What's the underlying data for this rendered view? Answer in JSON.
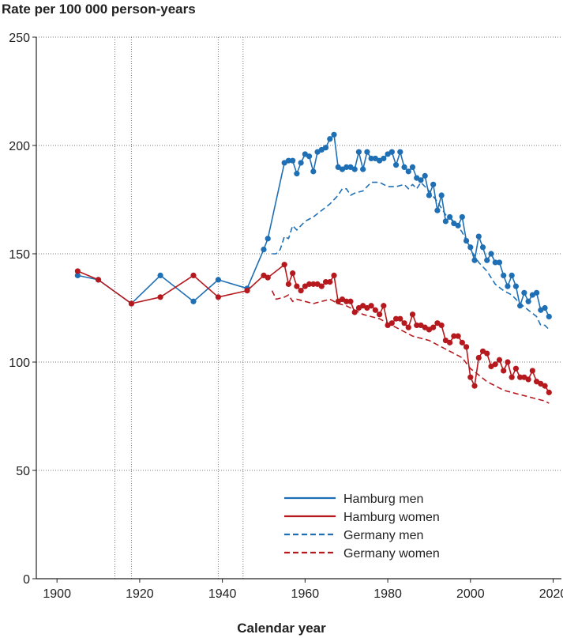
{
  "chart_data": {
    "type": "line",
    "ylabel": "Rate per 100 000 person-years",
    "xlabel": "Calendar year",
    "xlim": [
      1895,
      2022
    ],
    "ylim": [
      0,
      250
    ],
    "xticks": [
      1900,
      1920,
      1940,
      1960,
      1980,
      2000,
      2020
    ],
    "yticks": [
      0,
      50,
      100,
      150,
      200,
      250
    ],
    "grid": "horizontal dotted",
    "event_lines": [
      1914,
      1918,
      1939,
      1945
    ],
    "legend_position": "bottom-right",
    "series": [
      {
        "name": "Hamburg men",
        "style": "solid-markers",
        "color": "#1f6fb5",
        "points": [
          [
            1905,
            140
          ],
          [
            1910,
            138
          ],
          [
            1918,
            127
          ],
          [
            1925,
            140
          ],
          [
            1933,
            128
          ],
          [
            1939,
            138
          ],
          [
            1946,
            134
          ],
          [
            1950,
            152
          ],
          [
            1951,
            157
          ],
          [
            1955,
            192
          ],
          [
            1956,
            193
          ],
          [
            1957,
            193
          ],
          [
            1958,
            187
          ],
          [
            1959,
            192
          ],
          [
            1960,
            196
          ],
          [
            1961,
            195
          ],
          [
            1962,
            188
          ],
          [
            1963,
            197
          ],
          [
            1964,
            198
          ],
          [
            1965,
            199
          ],
          [
            1966,
            203
          ],
          [
            1967,
            205
          ],
          [
            1968,
            190
          ],
          [
            1969,
            189
          ],
          [
            1970,
            190
          ],
          [
            1971,
            190
          ],
          [
            1972,
            189
          ],
          [
            1973,
            197
          ],
          [
            1974,
            189
          ],
          [
            1975,
            197
          ],
          [
            1976,
            194
          ],
          [
            1977,
            194
          ],
          [
            1978,
            193
          ],
          [
            1979,
            194
          ],
          [
            1980,
            196
          ],
          [
            1981,
            197
          ],
          [
            1982,
            191
          ],
          [
            1983,
            197
          ],
          [
            1984,
            190
          ],
          [
            1985,
            188
          ],
          [
            1986,
            190
          ],
          [
            1987,
            185
          ],
          [
            1988,
            184
          ],
          [
            1989,
            186
          ],
          [
            1990,
            177
          ],
          [
            1991,
            182
          ],
          [
            1992,
            170
          ],
          [
            1993,
            177
          ],
          [
            1994,
            165
          ],
          [
            1995,
            167
          ],
          [
            1996,
            164
          ],
          [
            1997,
            163
          ],
          [
            1998,
            167
          ],
          [
            1999,
            156
          ],
          [
            2000,
            153
          ],
          [
            2001,
            147
          ],
          [
            2002,
            158
          ],
          [
            2003,
            153
          ],
          [
            2004,
            147
          ],
          [
            2005,
            150
          ],
          [
            2006,
            146
          ],
          [
            2007,
            146
          ],
          [
            2008,
            140
          ],
          [
            2009,
            135
          ],
          [
            2010,
            140
          ],
          [
            2011,
            135
          ],
          [
            2012,
            126
          ],
          [
            2013,
            132
          ],
          [
            2014,
            128
          ],
          [
            2015,
            131
          ],
          [
            2016,
            132
          ],
          [
            2017,
            124
          ],
          [
            2018,
            125
          ],
          [
            2019,
            121
          ]
        ]
      },
      {
        "name": "Hamburg women",
        "style": "solid-markers",
        "color": "#b5191e",
        "points": [
          [
            1905,
            142
          ],
          [
            1910,
            138
          ],
          [
            1918,
            127
          ],
          [
            1925,
            130
          ],
          [
            1933,
            140
          ],
          [
            1939,
            130
          ],
          [
            1946,
            133
          ],
          [
            1950,
            140
          ],
          [
            1951,
            139
          ],
          [
            1955,
            145
          ],
          [
            1956,
            136
          ],
          [
            1957,
            141
          ],
          [
            1958,
            135
          ],
          [
            1959,
            133
          ],
          [
            1960,
            135
          ],
          [
            1961,
            136
          ],
          [
            1962,
            136
          ],
          [
            1963,
            136
          ],
          [
            1964,
            135
          ],
          [
            1965,
            137
          ],
          [
            1966,
            137
          ],
          [
            1967,
            140
          ],
          [
            1968,
            128
          ],
          [
            1969,
            129
          ],
          [
            1970,
            128
          ],
          [
            1971,
            128
          ],
          [
            1972,
            123
          ],
          [
            1973,
            125
          ],
          [
            1974,
            126
          ],
          [
            1975,
            125
          ],
          [
            1976,
            126
          ],
          [
            1977,
            124
          ],
          [
            1978,
            122
          ],
          [
            1979,
            126
          ],
          [
            1980,
            117
          ],
          [
            1981,
            118
          ],
          [
            1982,
            120
          ],
          [
            1983,
            120
          ],
          [
            1984,
            118
          ],
          [
            1985,
            116
          ],
          [
            1986,
            122
          ],
          [
            1987,
            117
          ],
          [
            1988,
            117
          ],
          [
            1989,
            116
          ],
          [
            1990,
            115
          ],
          [
            1991,
            116
          ],
          [
            1992,
            118
          ],
          [
            1993,
            117
          ],
          [
            1994,
            110
          ],
          [
            1995,
            109
          ],
          [
            1996,
            112
          ],
          [
            1997,
            112
          ],
          [
            1998,
            109
          ],
          [
            1999,
            107
          ],
          [
            2000,
            93
          ],
          [
            2001,
            89
          ],
          [
            2002,
            102
          ],
          [
            2003,
            105
          ],
          [
            2004,
            104
          ],
          [
            2005,
            98
          ],
          [
            2006,
            99
          ],
          [
            2007,
            101
          ],
          [
            2008,
            96
          ],
          [
            2009,
            100
          ],
          [
            2010,
            93
          ],
          [
            2011,
            97
          ],
          [
            2012,
            93
          ],
          [
            2013,
            93
          ],
          [
            2014,
            92
          ],
          [
            2015,
            96
          ],
          [
            2016,
            91
          ],
          [
            2017,
            90
          ],
          [
            2018,
            89
          ],
          [
            2019,
            86
          ]
        ]
      },
      {
        "name": "Germany men",
        "style": "dashed",
        "color": "#1f6fb5",
        "points": [
          [
            1952,
            150
          ],
          [
            1953,
            150
          ],
          [
            1954,
            152
          ],
          [
            1955,
            158
          ],
          [
            1956,
            157
          ],
          [
            1957,
            163
          ],
          [
            1958,
            161
          ],
          [
            1959,
            163
          ],
          [
            1960,
            165
          ],
          [
            1962,
            167
          ],
          [
            1964,
            170
          ],
          [
            1966,
            173
          ],
          [
            1968,
            177
          ],
          [
            1969,
            180
          ],
          [
            1970,
            180
          ],
          [
            1971,
            177
          ],
          [
            1972,
            178
          ],
          [
            1974,
            179
          ],
          [
            1976,
            183
          ],
          [
            1978,
            183
          ],
          [
            1980,
            181
          ],
          [
            1982,
            181
          ],
          [
            1984,
            182
          ],
          [
            1985,
            180
          ],
          [
            1986,
            182
          ],
          [
            1987,
            180
          ],
          [
            1988,
            183
          ],
          [
            1990,
            179
          ],
          [
            1992,
            174
          ],
          [
            1994,
            168
          ],
          [
            1996,
            165
          ],
          [
            1998,
            160
          ],
          [
            2000,
            152
          ],
          [
            2002,
            146
          ],
          [
            2004,
            142
          ],
          [
            2006,
            136
          ],
          [
            2008,
            133
          ],
          [
            2010,
            131
          ],
          [
            2012,
            127
          ],
          [
            2014,
            124
          ],
          [
            2016,
            121
          ],
          [
            2017,
            117
          ],
          [
            2018,
            117
          ],
          [
            2019,
            115
          ]
        ]
      },
      {
        "name": "Germany women",
        "style": "dashed",
        "color": "#b5191e",
        "points": [
          [
            1952,
            133
          ],
          [
            1953,
            129
          ],
          [
            1955,
            130
          ],
          [
            1956,
            131
          ],
          [
            1957,
            128
          ],
          [
            1958,
            129
          ],
          [
            1960,
            128
          ],
          [
            1962,
            127
          ],
          [
            1964,
            128
          ],
          [
            1966,
            129
          ],
          [
            1968,
            127
          ],
          [
            1970,
            126
          ],
          [
            1972,
            124
          ],
          [
            1974,
            122
          ],
          [
            1976,
            121
          ],
          [
            1978,
            120
          ],
          [
            1980,
            118
          ],
          [
            1982,
            116
          ],
          [
            1984,
            114
          ],
          [
            1986,
            112
          ],
          [
            1988,
            111
          ],
          [
            1990,
            110
          ],
          [
            1992,
            108
          ],
          [
            1994,
            106
          ],
          [
            1996,
            104
          ],
          [
            1998,
            102
          ],
          [
            2000,
            97
          ],
          [
            2002,
            94
          ],
          [
            2004,
            91
          ],
          [
            2006,
            89
          ],
          [
            2008,
            87
          ],
          [
            2010,
            86
          ],
          [
            2012,
            85
          ],
          [
            2014,
            84
          ],
          [
            2016,
            83
          ],
          [
            2018,
            82
          ],
          [
            2019,
            81
          ]
        ]
      }
    ]
  }
}
